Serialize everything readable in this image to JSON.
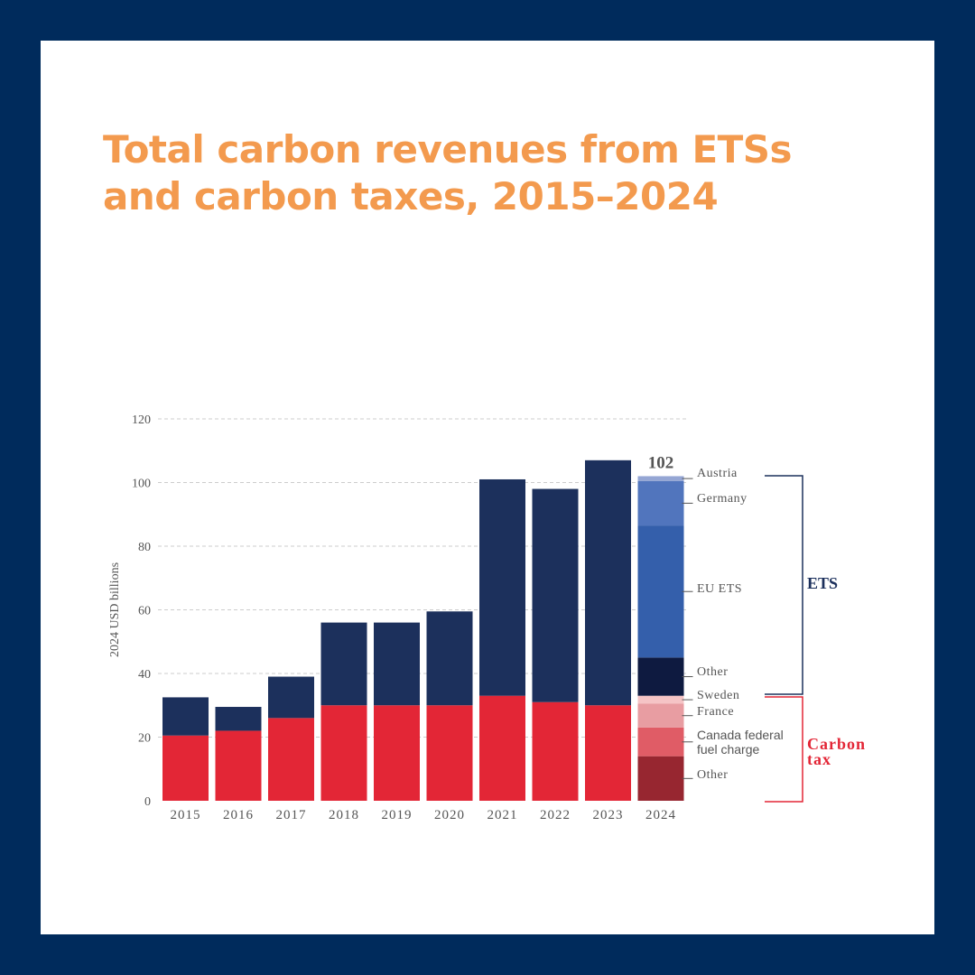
{
  "colors": {
    "frame": "#002b5c",
    "title": "#f39a4e",
    "ets": "#1c305c",
    "carbon_tax": "#e32636",
    "ets_bracket": "#1c305c",
    "tax_bracket": "#e32636",
    "label_text": "#555555",
    "gridline": "#cccccc"
  },
  "title_line1": "Total carbon revenues from ETSs",
  "title_line2": "and carbon taxes, 2015–2024",
  "chart_data": {
    "type": "bar",
    "stacked": true,
    "title": "Total carbon revenues from ETSs and carbon taxes, 2015–2024",
    "ylabel": "2024 USD billions",
    "xlabel": "",
    "ylim": [
      0,
      120
    ],
    "yticks": [
      0,
      20,
      40,
      60,
      80,
      100,
      120
    ],
    "grid": true,
    "categories": [
      "2015",
      "2016",
      "2017",
      "2018",
      "2019",
      "2020",
      "2021",
      "2022",
      "2023"
    ],
    "series": [
      {
        "name": "Carbon tax",
        "color": "#e32636",
        "values": [
          20.5,
          22,
          26,
          30,
          30,
          30,
          33,
          31,
          30
        ]
      },
      {
        "name": "ETS",
        "color": "#1c305c",
        "values": [
          12,
          7.5,
          13,
          26,
          26,
          29.5,
          68,
          67,
          77
        ]
      }
    ],
    "breakdown_2024": {
      "category": "2024",
      "total_label": "102",
      "segments": [
        {
          "name": "Other",
          "group": "Carbon tax",
          "value": 14,
          "color": "#972630"
        },
        {
          "name": "Canada federal fuel charge",
          "group": "Carbon tax",
          "value": 9,
          "color": "#e05c66"
        },
        {
          "name": "France",
          "group": "Carbon tax",
          "value": 7.5,
          "color": "#e89da2"
        },
        {
          "name": "Sweden",
          "group": "Carbon tax",
          "value": 2.5,
          "color": "#f5c4c6"
        },
        {
          "name": "Other",
          "group": "ETS",
          "value": 12,
          "color": "#0e1a40"
        },
        {
          "name": "EU ETS",
          "group": "ETS",
          "value": 41.5,
          "color": "#345fab"
        },
        {
          "name": "Germany",
          "group": "ETS",
          "value": 14,
          "color": "#5175bd"
        },
        {
          "name": "Austria",
          "group": "ETS",
          "value": 1.5,
          "color": "#95a6d4"
        }
      ]
    },
    "group_labels": {
      "ets": "ETS",
      "carbon_tax": "Carbon tax"
    }
  }
}
